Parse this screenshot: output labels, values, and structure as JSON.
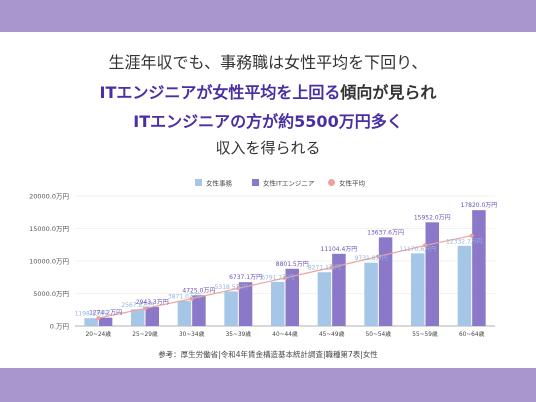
{
  "headline": {
    "line1": "生涯年収でも、事務職は女性平均を下回り、",
    "line2_highlight": "ITエンジニアが女性平均を上回る",
    "line2_rest": "傾向が見られ",
    "line3": "ITエンジニアの方が約5500万円多く",
    "line4": "収入を得られる"
  },
  "source": "参考：厚生労働省|令和4年賃金構造基本統計調査|職種第7表|女性",
  "colors": {
    "band": "#a996cf",
    "office": "#a5c6e6",
    "it": "#8c78c8",
    "avg": "#f0a29a",
    "highlight": "#4a2fa3"
  },
  "chart_data": {
    "type": "bar",
    "categories": [
      "20~24歳",
      "25~29歳",
      "30~34歳",
      "35~39歳",
      "40~44歳",
      "45~49歳",
      "50~54歳",
      "55~59歳",
      "60~64歳"
    ],
    "series": [
      {
        "name": "女性事務",
        "type": "bar",
        "values": [
          1198.1,
          2567.8,
          3871.0,
          5318.5,
          6791.2,
          8271.1,
          9731.8,
          11170.6,
          12332.7
        ],
        "labels": [
          "1198.1万円",
          "2567.8万円",
          "3871.0万円",
          "5318.5万円",
          "6791.2万円",
          "8271.1万円",
          "9731.8万円",
          "11170.6万円",
          "12332.7万円"
        ]
      },
      {
        "name": "女性ITエンジニア",
        "type": "bar",
        "values": [
          1274.2,
          2943.3,
          4725.0,
          6737.1,
          8801.5,
          11104.4,
          13637.6,
          15952.0,
          17820.0
        ],
        "labels": [
          "1274.2万円",
          "2943.3万円",
          "4725.0万円",
          "6737.1万円",
          "8801.5万円",
          "11104.4万円",
          "13637.6万円",
          "15952.0万円",
          "17820.0万円"
        ]
      },
      {
        "name": "女性平均",
        "type": "line",
        "values": [
          1220,
          2700,
          4200,
          5800,
          7400,
          9000,
          10700,
          12400,
          13900
        ]
      }
    ],
    "yticks": [
      0,
      5000,
      10000,
      15000,
      20000
    ],
    "ytick_labels": [
      "0.万円",
      "5000.0万円",
      "10000.0万円",
      "15000.0万円",
      "20000.0万円"
    ],
    "ylim": [
      0,
      20000
    ],
    "legend": "top-center",
    "grid": true
  }
}
